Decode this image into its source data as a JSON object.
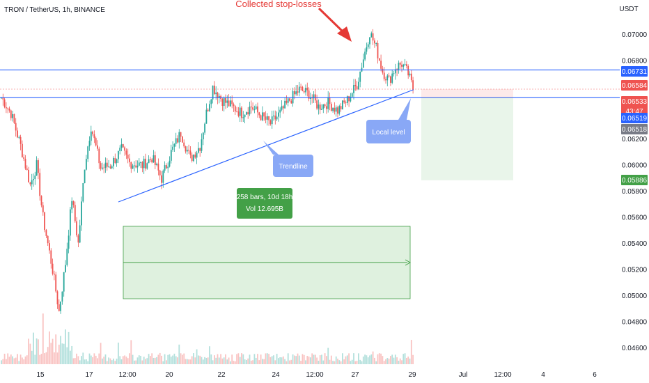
{
  "header": {
    "symbol": "TRON / TetherUS, 1h, BINANCE",
    "currency": "USDT"
  },
  "colors": {
    "up": "#26a69a",
    "down": "#ef5350",
    "level_line": "#2962ff",
    "trend_line": "#2962ff",
    "annotation_red": "#e53935",
    "callout_blue": "#89a8f6",
    "measure_green": "#43a047",
    "range_fill": "rgba(76,175,80,0.18)"
  },
  "annotations": {
    "stop_losses": "Collected stop-losses",
    "trendline": "Trendline",
    "local_level": "Local level",
    "measure_line1": "258 bars, 10d 18h",
    "measure_line2": "Vol 12.695B"
  },
  "price_badges": [
    {
      "label": "0.06731",
      "value": 0.06731,
      "color": "#2962ff"
    },
    {
      "label": "0.06584",
      "value": 0.06584,
      "color": "#ef5350"
    },
    {
      "label": "0.06533",
      "value": 0.06533,
      "color": "#ef5350",
      "sub": "43:47"
    },
    {
      "label": "0.06519",
      "value": 0.06519,
      "color": "#2962ff"
    },
    {
      "label": "0.06518",
      "value": 0.06518,
      "color": "#787b86"
    },
    {
      "label": "0.05886",
      "value": 0.05886,
      "color": "#43a047"
    }
  ],
  "chart_data": {
    "type": "candlestick",
    "title": "TRON / TetherUS, 1h, BINANCE",
    "ylabel": "USDT",
    "ylim": [
      0.0455,
      0.072
    ],
    "x_ticks": [
      "15",
      "15",
      "17",
      "12:00",
      "20",
      "22",
      "24",
      "12:00",
      "27",
      "29",
      "Jul",
      "12:00",
      "4",
      "6"
    ],
    "y_ticks": [
      0.07,
      0.068,
      0.066,
      0.064,
      0.062,
      0.06,
      0.058,
      0.056,
      0.054,
      0.052,
      0.05,
      0.048,
      0.046
    ],
    "y_tick_labels": [
      "0.07000",
      "0.06800",
      "0.06600",
      "0.06400",
      "0.06200",
      "0.06000",
      "0.05800",
      "0.05600",
      "0.05400",
      "0.05200",
      "0.05000",
      "0.04800",
      "0.04600"
    ],
    "path": [
      [
        0,
        0.0652
      ],
      [
        6,
        0.064
      ],
      [
        12,
        0.0615
      ],
      [
        18,
        0.0585
      ],
      [
        22,
        0.06
      ],
      [
        26,
        0.056
      ],
      [
        32,
        0.052
      ],
      [
        36,
        0.0488
      ],
      [
        40,
        0.0525
      ],
      [
        44,
        0.0575
      ],
      [
        48,
        0.054
      ],
      [
        52,
        0.06
      ],
      [
        56,
        0.063
      ],
      [
        62,
        0.0598
      ],
      [
        68,
        0.06
      ],
      [
        75,
        0.0612
      ],
      [
        80,
        0.0602
      ],
      [
        88,
        0.06
      ],
      [
        94,
        0.0606
      ],
      [
        100,
        0.059
      ],
      [
        106,
        0.061
      ],
      [
        112,
        0.0625
      ],
      [
        118,
        0.0605
      ],
      [
        124,
        0.0615
      ],
      [
        128,
        0.064
      ],
      [
        132,
        0.066
      ],
      [
        138,
        0.065
      ],
      [
        144,
        0.0645
      ],
      [
        150,
        0.064
      ],
      [
        156,
        0.0645
      ],
      [
        162,
        0.0638
      ],
      [
        168,
        0.0632
      ],
      [
        174,
        0.064
      ],
      [
        180,
        0.065
      ],
      [
        186,
        0.0658
      ],
      [
        192,
        0.0655
      ],
      [
        198,
        0.0645
      ],
      [
        204,
        0.0648
      ],
      [
        210,
        0.0642
      ],
      [
        216,
        0.065
      ],
      [
        222,
        0.0662
      ],
      [
        226,
        0.0682
      ],
      [
        230,
        0.0702
      ],
      [
        234,
        0.069
      ],
      [
        238,
        0.0672
      ],
      [
        242,
        0.0665
      ],
      [
        246,
        0.0675
      ],
      [
        250,
        0.0678
      ],
      [
        254,
        0.067
      ],
      [
        258,
        0.0655
      ]
    ],
    "levels": [
      {
        "name": "resistance",
        "value": 0.06731
      },
      {
        "name": "local-level",
        "value": 0.06519
      },
      {
        "name": "last-price",
        "value": 0.06533
      }
    ],
    "trendline": {
      "from": [
        0.0572,
        "bar 44"
      ],
      "to": [
        0.0658,
        "bar 258"
      ]
    },
    "date_range_measure": {
      "bars": 258,
      "duration": "10d 18h",
      "volume": "12.695B"
    },
    "position_tool": {
      "entry": 0.06533,
      "stop": 0.06584,
      "target": 0.05886
    },
    "grid": false,
    "legend": "none"
  }
}
